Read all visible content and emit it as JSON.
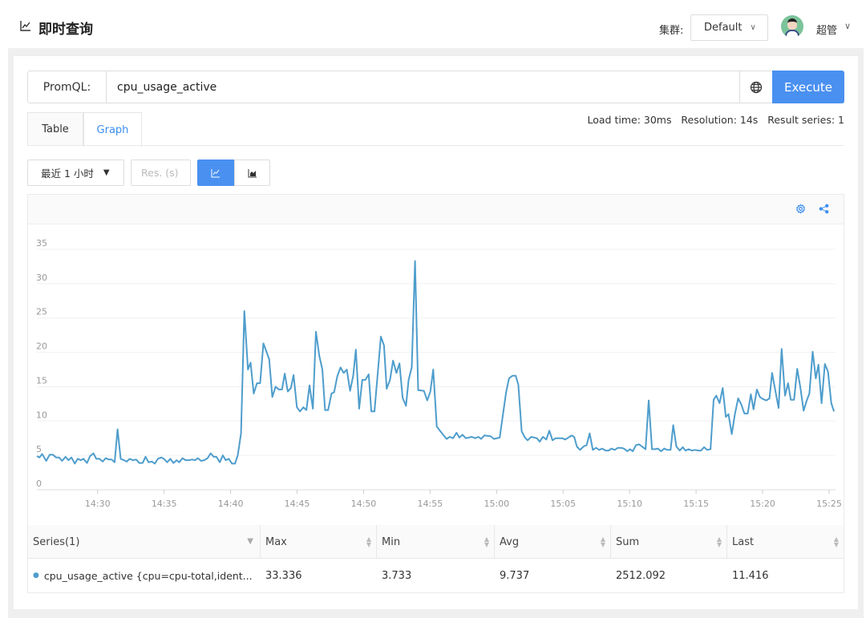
{
  "header": {
    "title": "即时查询",
    "cluster_label": "集群:",
    "cluster_value": "Default",
    "user": "超管"
  },
  "query": {
    "label": "PromQL:",
    "value": "cpu_usage_active",
    "execute": "Execute"
  },
  "tabs": [
    {
      "label": "Table",
      "active": false
    },
    {
      "label": "Graph",
      "active": true
    }
  ],
  "stats": "Load time: 30ms   Resolution: 14s   Result series: 1",
  "controls": {
    "range": "最近 1 小时",
    "res_placeholder": "Res. (s)",
    "chart_types": [
      "line",
      "area"
    ],
    "active_type": "line"
  },
  "colors": {
    "accent": "#4a90f0",
    "series": "#4e9dcc"
  },
  "chart_data": {
    "type": "line",
    "xlim": [
      "14:25:26",
      "15:25:29"
    ],
    "ylim": [
      0,
      35
    ],
    "yticks": [
      0,
      5,
      10,
      15,
      20,
      25,
      30,
      35
    ],
    "xticks": [
      "14:30",
      "14:35",
      "14:40",
      "14:45",
      "14:50",
      "14:55",
      "15:00",
      "15:05",
      "15:10",
      "15:15",
      "15:20",
      "15:25"
    ],
    "grid": true,
    "series": [
      {
        "name": "cpu_usage_active {cpu=cpu-total,ident...",
        "points": [
          [
            "14:25:26",
            4.9
          ],
          [
            "14:25:38",
            4.7
          ],
          [
            "14:25:50",
            5.2
          ],
          [
            "14:26:08",
            4.2
          ],
          [
            "14:26:24",
            5.1
          ],
          [
            "14:26:38",
            5.1
          ],
          [
            "14:26:53",
            4.7
          ],
          [
            "14:27:06",
            4.7
          ],
          [
            "14:27:20",
            4.2
          ],
          [
            "14:27:35",
            4.8
          ],
          [
            "14:27:48",
            4.3
          ],
          [
            "14:28:02",
            4.7
          ],
          [
            "14:28:17",
            3.8
          ],
          [
            "14:28:30",
            4.5
          ],
          [
            "14:28:44",
            4.3
          ],
          [
            "14:28:56",
            4.5
          ],
          [
            "14:29:12",
            3.9
          ],
          [
            "14:29:26",
            4.9
          ],
          [
            "14:29:41",
            5.3
          ],
          [
            "14:29:54",
            4.5
          ],
          [
            "14:30:08",
            4.5
          ],
          [
            "14:30:23",
            4.1
          ],
          [
            "14:30:36",
            4.6
          ],
          [
            "14:30:50",
            4.4
          ],
          [
            "14:31:04",
            4.4
          ],
          [
            "14:31:17",
            4.0
          ],
          [
            "14:31:30",
            8.8
          ],
          [
            "14:31:44",
            4.5
          ],
          [
            "14:31:59",
            4.3
          ],
          [
            "14:32:11",
            4.1
          ],
          [
            "14:32:25",
            4.5
          ],
          [
            "14:32:38",
            4.3
          ],
          [
            "14:32:54",
            4.4
          ],
          [
            "14:33:08",
            3.9
          ],
          [
            "14:33:23",
            3.9
          ],
          [
            "14:33:36",
            4.8
          ],
          [
            "14:33:50",
            4.0
          ],
          [
            "14:34:05",
            4.1
          ],
          [
            "14:34:18",
            3.8
          ],
          [
            "14:34:32",
            4.5
          ],
          [
            "14:34:47",
            4.7
          ],
          [
            "14:34:59",
            4.5
          ],
          [
            "14:35:14",
            4.0
          ],
          [
            "14:35:28",
            4.5
          ],
          [
            "14:35:42",
            3.9
          ],
          [
            "14:35:56",
            4.3
          ],
          [
            "14:36:08",
            4.0
          ],
          [
            "14:36:23",
            4.6
          ],
          [
            "14:36:37",
            4.3
          ],
          [
            "14:36:52",
            4.3
          ],
          [
            "14:37:06",
            4.4
          ],
          [
            "14:37:20",
            4.3
          ],
          [
            "14:37:32",
            4.6
          ],
          [
            "14:37:47",
            4.2
          ],
          [
            "14:38:01",
            4.3
          ],
          [
            "14:38:16",
            4.6
          ],
          [
            "14:38:30",
            5.3
          ],
          [
            "14:38:44",
            4.8
          ],
          [
            "14:38:56",
            4.8
          ],
          [
            "14:39:11",
            4.0
          ],
          [
            "14:39:25",
            5.0
          ],
          [
            "14:39:38",
            4.3
          ],
          [
            "14:39:52",
            4.5
          ],
          [
            "14:40:06",
            3.8
          ],
          [
            "14:40:20",
            3.8
          ],
          [
            "14:40:32",
            5.0
          ],
          [
            "14:40:47",
            8.2
          ],
          [
            "14:41:02",
            26
          ],
          [
            "14:41:18",
            17.5
          ],
          [
            "14:41:30",
            18.5
          ],
          [
            "14:41:44",
            14
          ],
          [
            "14:41:59",
            15.5
          ],
          [
            "14:42:13",
            15.5
          ],
          [
            "14:42:28",
            21.3
          ],
          [
            "14:42:54",
            19
          ],
          [
            "14:43:08",
            13.5
          ],
          [
            "14:43:23",
            15
          ],
          [
            "14:43:37",
            14.6
          ],
          [
            "14:43:52",
            14.6
          ],
          [
            "14:44:04",
            16.9
          ],
          [
            "14:44:18",
            14.3
          ],
          [
            "14:44:32",
            14.8
          ],
          [
            "14:44:44",
            16.7
          ],
          [
            "14:44:59",
            12
          ],
          [
            "14:45:13",
            11.4
          ],
          [
            "14:45:28",
            12
          ],
          [
            "14:45:42",
            11.6
          ],
          [
            "14:45:56",
            15.2
          ],
          [
            "14:46:11",
            11.8
          ],
          [
            "14:46:25",
            23
          ],
          [
            "14:46:40",
            19.5
          ],
          [
            "14:46:54",
            17.5
          ],
          [
            "14:47:06",
            11.6
          ],
          [
            "14:47:20",
            11.6
          ],
          [
            "14:47:35",
            14
          ],
          [
            "14:47:47",
            14.2
          ],
          [
            "14:48:01",
            16.5
          ],
          [
            "14:48:16",
            17.8
          ],
          [
            "14:48:30",
            17
          ],
          [
            "14:48:44",
            17.5
          ],
          [
            "14:48:59",
            14.4
          ],
          [
            "14:49:13",
            16.6
          ],
          [
            "14:49:25",
            20.4
          ],
          [
            "14:49:40",
            11.8
          ],
          [
            "14:49:54",
            16
          ],
          [
            "14:50:08",
            16
          ],
          [
            "14:50:23",
            16.8
          ],
          [
            "14:50:35",
            11.4
          ],
          [
            "14:50:49",
            11.4
          ],
          [
            "14:51:18",
            22.3
          ],
          [
            "14:51:32",
            21
          ],
          [
            "14:51:44",
            14.7
          ],
          [
            "14:51:59",
            16
          ],
          [
            "14:52:13",
            18.8
          ],
          [
            "14:52:28",
            17
          ],
          [
            "14:52:42",
            18.4
          ],
          [
            "14:52:56",
            13.4
          ],
          [
            "14:53:11",
            12.2
          ],
          [
            "14:53:23",
            16
          ],
          [
            "14:53:37",
            17.8
          ],
          [
            "14:53:52",
            33.3
          ],
          [
            "14:54:06",
            14.5
          ],
          [
            "14:54:32",
            14.4
          ],
          [
            "14:54:47",
            13
          ],
          [
            "14:55:01",
            14.3
          ],
          [
            "14:55:14",
            17.5
          ],
          [
            "14:55:30",
            9.2
          ],
          [
            "14:55:44",
            8.6
          ],
          [
            "14:56:14",
            7.4
          ],
          [
            "14:56:29",
            7.7
          ],
          [
            "14:56:44",
            7.5
          ],
          [
            "14:56:59",
            8.3
          ],
          [
            "14:57:12",
            7.6
          ],
          [
            "14:57:26",
            8
          ],
          [
            "14:57:41",
            7.5
          ],
          [
            "14:58:08",
            7.7
          ],
          [
            "14:58:23",
            7.5
          ],
          [
            "14:58:38",
            7.7
          ],
          [
            "14:58:50",
            7.4
          ],
          [
            "14:59:05",
            7.9
          ],
          [
            "14:59:32",
            7.8
          ],
          [
            "14:59:48",
            7.4
          ],
          [
            "15:00:14",
            7.6
          ],
          [
            "15:00:29",
            11
          ],
          [
            "15:00:43",
            14.2
          ],
          [
            "15:00:56",
            16.2
          ],
          [
            "15:01:12",
            16.6
          ],
          [
            "15:01:26",
            16.6
          ],
          [
            "15:01:38",
            15.3
          ],
          [
            "15:01:53",
            8.5
          ],
          [
            "15:02:08",
            7.6
          ],
          [
            "15:02:20",
            7.2
          ],
          [
            "15:02:36",
            7.7
          ],
          [
            "15:03:02",
            7.5
          ],
          [
            "15:03:14",
            7.0
          ],
          [
            "15:03:29",
            7.7
          ],
          [
            "15:03:44",
            7.3
          ],
          [
            "15:03:58",
            8.6
          ],
          [
            "15:04:12",
            7.2
          ],
          [
            "15:04:26",
            7.5
          ],
          [
            "15:04:56",
            7.5
          ],
          [
            "15:05:10",
            7.3
          ],
          [
            "15:05:38",
            7.9
          ],
          [
            "15:05:50",
            7.7
          ],
          [
            "15:06:02",
            6.3
          ],
          [
            "15:06:17",
            5.8
          ],
          [
            "15:06:32",
            6.3
          ],
          [
            "15:06:46",
            6.5
          ],
          [
            "15:07:00",
            8.2
          ],
          [
            "15:07:14",
            5.8
          ],
          [
            "15:07:29",
            6.1
          ],
          [
            "15:07:43",
            5.8
          ],
          [
            "15:07:56",
            6.0
          ],
          [
            "15:08:12",
            5.7
          ],
          [
            "15:08:26",
            5.7
          ],
          [
            "15:08:38",
            6.0
          ],
          [
            "15:08:53",
            5.8
          ],
          [
            "15:09:07",
            6.1
          ],
          [
            "15:09:22",
            6.1
          ],
          [
            "15:09:34",
            6.0
          ],
          [
            "15:09:50",
            5.6
          ],
          [
            "15:10:02",
            5.9
          ],
          [
            "15:10:14",
            5.6
          ],
          [
            "15:10:29",
            6.5
          ],
          [
            "15:10:43",
            6.6
          ],
          [
            "15:11:12",
            5.9
          ],
          [
            "15:11:26",
            13
          ],
          [
            "15:11:41",
            5.9
          ],
          [
            "15:11:55",
            5.9
          ],
          [
            "15:12:08",
            6.0
          ],
          [
            "15:12:22",
            5.6
          ],
          [
            "15:12:36",
            6.0
          ],
          [
            "15:12:50",
            5.8
          ],
          [
            "15:13:05",
            5.8
          ],
          [
            "15:13:17",
            9.4
          ],
          [
            "15:13:31",
            6.3
          ],
          [
            "15:13:46",
            5.7
          ],
          [
            "15:14:00",
            6.2
          ],
          [
            "15:14:12",
            5.7
          ],
          [
            "15:14:26",
            5.9
          ],
          [
            "15:14:41",
            5.7
          ],
          [
            "15:14:55",
            5.8
          ],
          [
            "15:15:10",
            5.7
          ],
          [
            "15:15:22",
            5.7
          ],
          [
            "15:15:36",
            6.2
          ],
          [
            "15:15:50",
            5.8
          ],
          [
            "15:16:05",
            5.9
          ],
          [
            "15:16:19",
            13.1
          ],
          [
            "15:16:31",
            13.7
          ],
          [
            "15:16:46",
            12.6
          ],
          [
            "15:17:00",
            14.8
          ],
          [
            "15:17:14",
            10.6
          ],
          [
            "15:17:26",
            11
          ],
          [
            "15:17:41",
            8.1
          ],
          [
            "15:17:55",
            11
          ],
          [
            "15:18:10",
            13.3
          ],
          [
            "15:18:24",
            12.4
          ],
          [
            "15:18:38",
            11.1
          ],
          [
            "15:18:53",
            11.1
          ],
          [
            "15:19:07",
            13.9
          ],
          [
            "15:19:19",
            11.7
          ],
          [
            "15:19:34",
            14.6
          ],
          [
            "15:19:48",
            13.5
          ],
          [
            "15:20:02",
            13.2
          ],
          [
            "15:20:17",
            13.0
          ],
          [
            "15:20:31",
            13.3
          ],
          [
            "15:20:43",
            17
          ],
          [
            "15:21:00",
            14
          ],
          [
            "15:21:12",
            11.9
          ],
          [
            "15:21:26",
            20.5
          ],
          [
            "15:21:41",
            13.7
          ],
          [
            "15:21:55",
            15.5
          ],
          [
            "15:22:07",
            13.1
          ],
          [
            "15:22:22",
            13.1
          ],
          [
            "15:22:36",
            17.6
          ],
          [
            "15:22:50",
            15
          ],
          [
            "15:23:05",
            11.5
          ],
          [
            "15:23:19",
            13
          ],
          [
            "15:23:31",
            14
          ],
          [
            "15:23:46",
            20.1
          ],
          [
            "15:24:00",
            16.2
          ],
          [
            "15:24:12",
            18.2
          ],
          [
            "15:24:26",
            12.6
          ],
          [
            "15:24:41",
            18.3
          ],
          [
            "15:24:55",
            17.2
          ],
          [
            "15:25:10",
            12.6
          ],
          [
            "15:25:22",
            11.4
          ]
        ]
      }
    ]
  },
  "table": {
    "columns": [
      "Series(1)",
      "Max",
      "Min",
      "Avg",
      "Sum",
      "Last"
    ],
    "rows": [
      {
        "series": "cpu_usage_active {cpu=cpu-total,ident...",
        "max": "33.336",
        "min": "3.733",
        "avg": "9.737",
        "sum": "2512.092",
        "last": "11.416"
      }
    ]
  }
}
